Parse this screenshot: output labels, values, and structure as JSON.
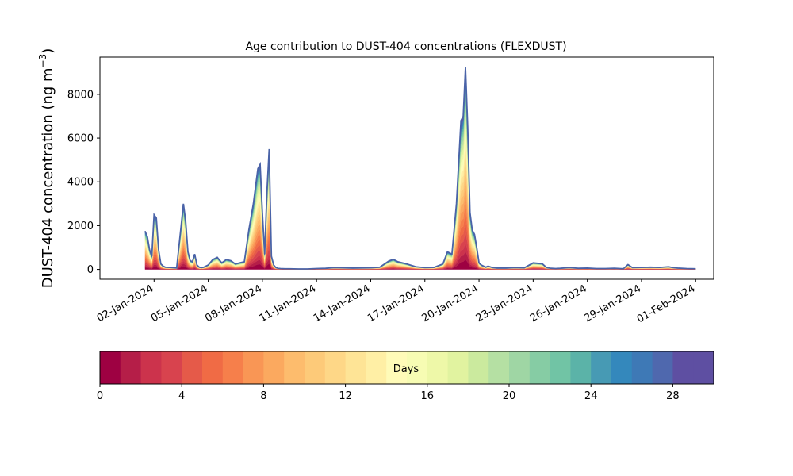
{
  "chart_data": {
    "type": "area",
    "title": "Age contribution to DUST-404 concentrations (FLEXDUST)",
    "ylabel": "DUST-404 concentration (ng m",
    "ylabel_sup": "−3",
    "ylabel_close": ")",
    "xlabel": "",
    "ylim": [
      -450,
      9700
    ],
    "xlim": [
      "2023-12-30T00:00",
      "2024-02-02T00:00"
    ],
    "yticks": [
      0,
      2000,
      4000,
      6000,
      8000
    ],
    "ytick_labels": [
      "0",
      "2000",
      "4000",
      "6000",
      "8000"
    ],
    "xticks": [
      "2024-01-02",
      "2024-01-05",
      "2024-01-08",
      "2024-01-11",
      "2024-01-14",
      "2024-01-17",
      "2024-01-20",
      "2024-01-23",
      "2024-01-26",
      "2024-01-29",
      "2024-02-01"
    ],
    "xtick_labels": [
      "02-Jan-2024",
      "05-Jan-2024",
      "08-Jan-2024",
      "11-Jan-2024",
      "14-Jan-2024",
      "17-Jan-2024",
      "20-Jan-2024",
      "23-Jan-2024",
      "26-Jan-2024",
      "29-Jan-2024",
      "01-Feb-2024"
    ],
    "total_series": {
      "x": [
        "2024-01-01T12:00",
        "2024-01-01T15:00",
        "2024-01-01T18:00",
        "2024-01-01T21:00",
        "2024-01-02T00:00",
        "2024-01-02T03:00",
        "2024-01-02T06:00",
        "2024-01-02T09:00",
        "2024-01-02T12:00",
        "2024-01-02T15:00",
        "2024-01-02T21:00",
        "2024-01-03T06:00",
        "2024-01-03T12:00",
        "2024-01-03T15:00",
        "2024-01-03T18:00",
        "2024-01-03T21:00",
        "2024-01-04T00:00",
        "2024-01-04T03:00",
        "2024-01-04T06:00",
        "2024-01-04T09:00",
        "2024-01-04T12:00",
        "2024-01-04T15:00",
        "2024-01-04T18:00",
        "2024-01-05T00:00",
        "2024-01-05T06:00",
        "2024-01-05T12:00",
        "2024-01-05T18:00",
        "2024-01-06T00:00",
        "2024-01-06T06:00",
        "2024-01-06T12:00",
        "2024-01-06T18:00",
        "2024-01-07T00:00",
        "2024-01-07T06:00",
        "2024-01-07T12:00",
        "2024-01-07T18:00",
        "2024-01-07T21:00",
        "2024-01-08T00:00",
        "2024-01-08T03:00",
        "2024-01-08T06:00",
        "2024-01-08T09:00",
        "2024-01-08T12:00",
        "2024-01-08T15:00",
        "2024-01-08T18:00",
        "2024-01-08T21:00",
        "2024-01-09T00:00",
        "2024-01-09T06:00",
        "2024-01-09T12:00",
        "2024-01-10T00:00",
        "2024-01-10T12:00",
        "2024-01-11T00:00",
        "2024-01-11T12:00",
        "2024-01-12T00:00",
        "2024-01-13T00:00",
        "2024-01-14T00:00",
        "2024-01-14T12:00",
        "2024-01-15T00:00",
        "2024-01-15T06:00",
        "2024-01-15T12:00",
        "2024-01-16T00:00",
        "2024-01-16T12:00",
        "2024-01-17T00:00",
        "2024-01-17T12:00",
        "2024-01-18T00:00",
        "2024-01-18T06:00",
        "2024-01-18T12:00",
        "2024-01-18T18:00",
        "2024-01-19T00:00",
        "2024-01-19T03:00",
        "2024-01-19T06:00",
        "2024-01-19T09:00",
        "2024-01-19T12:00",
        "2024-01-19T15:00",
        "2024-01-19T18:00",
        "2024-01-19T21:00",
        "2024-01-20T00:00",
        "2024-01-20T03:00",
        "2024-01-20T06:00",
        "2024-01-20T09:00",
        "2024-01-20T12:00",
        "2024-01-20T18:00",
        "2024-01-21T00:00",
        "2024-01-21T12:00",
        "2024-01-22T00:00",
        "2024-01-22T12:00",
        "2024-01-23T00:00",
        "2024-01-23T12:00",
        "2024-01-23T18:00",
        "2024-01-24T00:00",
        "2024-01-24T06:00",
        "2024-01-24T12:00",
        "2024-01-25T00:00",
        "2024-01-25T12:00",
        "2024-01-26T00:00",
        "2024-01-26T12:00",
        "2024-01-27T00:00",
        "2024-01-27T12:00",
        "2024-01-28T00:00",
        "2024-01-28T06:00",
        "2024-01-28T12:00",
        "2024-01-29T00:00",
        "2024-01-29T12:00",
        "2024-01-30T00:00",
        "2024-01-30T12:00",
        "2024-01-30T18:00",
        "2024-01-31T00:00",
        "2024-01-31T12:00",
        "2024-02-01T00:00"
      ],
      "y": [
        1750,
        1500,
        900,
        600,
        2500,
        2350,
        900,
        250,
        150,
        100,
        90,
        60,
        2000,
        3000,
        2200,
        800,
        400,
        350,
        700,
        200,
        100,
        80,
        100,
        200,
        450,
        550,
        300,
        450,
        400,
        250,
        300,
        350,
        1800,
        3000,
        4600,
        4800,
        2600,
        700,
        3500,
        5500,
        600,
        200,
        80,
        50,
        40,
        30,
        30,
        20,
        20,
        40,
        50,
        80,
        60,
        70,
        100,
        380,
        460,
        350,
        250,
        120,
        80,
        90,
        250,
        800,
        700,
        3000,
        6800,
        7000,
        9250,
        6500,
        2600,
        1800,
        1600,
        1000,
        300,
        200,
        150,
        100,
        150,
        80,
        60,
        60,
        80,
        70,
        300,
        260,
        80,
        50,
        40,
        50,
        80,
        50,
        60,
        40,
        40,
        50,
        30,
        220,
        80,
        90,
        100,
        90,
        120,
        80,
        60,
        40,
        30
      ]
    },
    "stack_fractions": [
      0.05,
      0.04,
      0.04,
      0.05,
      0.05,
      0.05,
      0.05,
      0.05,
      0.05,
      0.05,
      0.045,
      0.045,
      0.04,
      0.04,
      0.035,
      0.035,
      0.035,
      0.03,
      0.03,
      0.025,
      0.025,
      0.02,
      0.02,
      0.018,
      0.016,
      0.015,
      0.013,
      0.012,
      0.01,
      0.008
    ],
    "colorbar": {
      "label": "Days",
      "range": [
        0,
        30
      ],
      "ticks": [
        0,
        4,
        8,
        12,
        16,
        20,
        24,
        28
      ],
      "tick_labels": [
        "0",
        "4",
        "8",
        "12",
        "16",
        "20",
        "24",
        "28"
      ],
      "colors": [
        "#9e0142",
        "#b51e48",
        "#cc334c",
        "#d8434e",
        "#e55a49",
        "#f06b45",
        "#f67f4b",
        "#f99655",
        "#fba95f",
        "#fdbc6d",
        "#fdca79",
        "#fed787",
        "#fee496",
        "#ffefa5",
        "#fffbb8",
        "#f7fcb3",
        "#eef8a8",
        "#e1f3a0",
        "#cbea9e",
        "#b5e0a3",
        "#9fd6a4",
        "#86cca4",
        "#71c4a5",
        "#5bb3a8",
        "#479ab4",
        "#3488bc",
        "#3e79b6",
        "#4f68ae",
        "#5e4fa2",
        "#5e4fa2"
      ]
    },
    "outline_color": "#4a63a8",
    "grid": false,
    "legend": "colorbar-bottom"
  }
}
